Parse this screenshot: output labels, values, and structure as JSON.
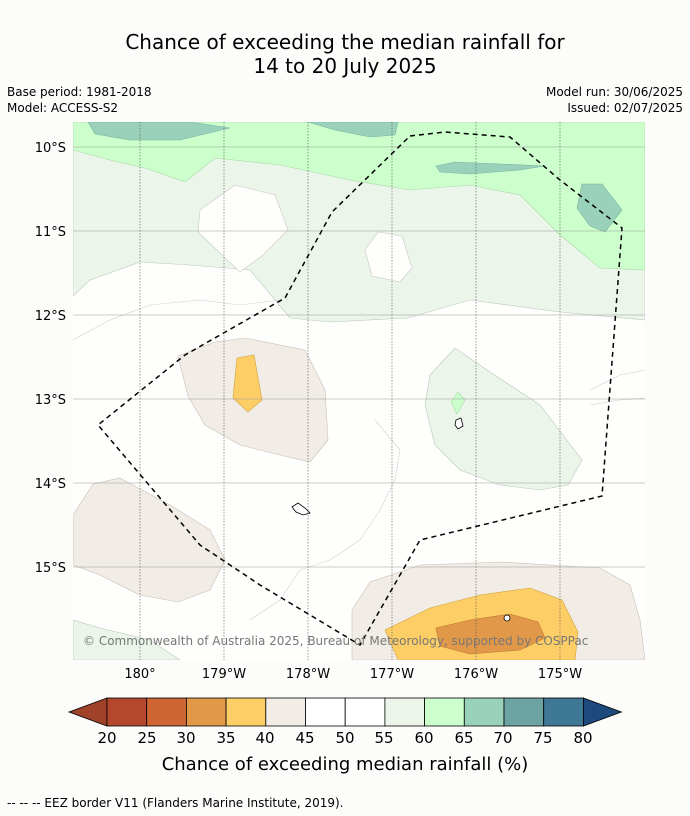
{
  "title": {
    "line1": "Chance of exceeding the median rainfall for",
    "line2": "14 to 20 July 2025"
  },
  "meta": {
    "base_period": "Base period: 1981-2018",
    "model": "Model: ACCESS-S2",
    "model_run": "Model run: 30/06/2025",
    "issued": "Issued: 02/07/2025"
  },
  "map": {
    "lat_ticks": [
      "10°S",
      "11°S",
      "12°S",
      "13°S",
      "14°S",
      "15°S"
    ],
    "lon_ticks": [
      "180°",
      "179°W",
      "178°W",
      "177°W",
      "176°W",
      "175°W"
    ],
    "copyright": "© Commonwealth of Australia 2025, Bureau of Meteorology, supported by COSPPac"
  },
  "colorbar": {
    "ticks": [
      "20",
      "25",
      "30",
      "35",
      "40",
      "45",
      "50",
      "55",
      "60",
      "65",
      "70",
      "75",
      "80"
    ],
    "colors": [
      "#a0412a",
      "#b5482c",
      "#cd6632",
      "#e19848",
      "#fece66",
      "#f1ece6",
      "#ffffff",
      "#ffffff",
      "#ebf5ea",
      "#ccffcc",
      "#99d1bb",
      "#6ca3a3",
      "#3f7895",
      "#1d4a7d"
    ],
    "label": "Chance of exceeding median rainfall (%)"
  },
  "footer": "--  --  -- EEZ border V11 (Flanders Marine Institute, 2019)."
}
